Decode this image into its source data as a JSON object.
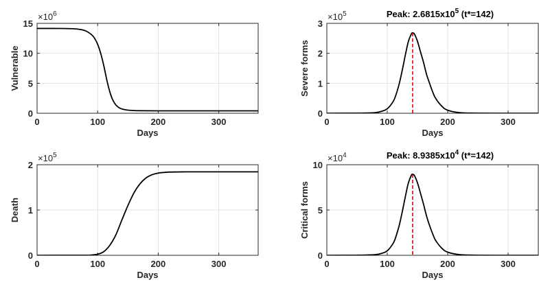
{
  "chart_data": [
    {
      "type": "line",
      "title": "",
      "xlabel": "Days",
      "ylabel": "Vulnerable",
      "exponent_base": "×10",
      "exponent_power": "6",
      "xlim": [
        0,
        365
      ],
      "ylim": [
        0,
        15
      ],
      "xticks": [
        0,
        100,
        200,
        300
      ],
      "yticks": [
        0,
        5,
        10,
        15
      ],
      "xtick_labels": [
        "0",
        "100",
        "200",
        "300"
      ],
      "ytick_labels": [
        "0",
        "5",
        "10",
        "15"
      ],
      "grid": true,
      "series": [
        {
          "color": "#000000",
          "x": [
            0,
            20,
            40,
            60,
            70,
            80,
            90,
            95,
            100,
            105,
            110,
            115,
            120,
            125,
            130,
            135,
            140,
            150,
            160,
            170,
            200,
            250,
            300,
            365
          ],
          "y": [
            14.15,
            14.15,
            14.14,
            14.1,
            14.0,
            13.75,
            13.1,
            12.5,
            11.5,
            10.0,
            8.0,
            5.6,
            3.6,
            2.2,
            1.4,
            0.95,
            0.72,
            0.52,
            0.45,
            0.42,
            0.4,
            0.4,
            0.4,
            0.4
          ]
        }
      ]
    },
    {
      "type": "line",
      "title_prefix": "Peak: 2.6815x10",
      "title_sup": "5",
      "title_suffix": "  (t*=142)",
      "xlabel": "Days",
      "ylabel": "Severe forms",
      "exponent_base": "×10",
      "exponent_power": "5",
      "xlim": [
        0,
        350
      ],
      "ylim": [
        0,
        3
      ],
      "xticks": [
        0,
        100,
        200,
        300
      ],
      "yticks": [
        0,
        1,
        2,
        3
      ],
      "xtick_labels": [
        "0",
        "100",
        "200",
        "300"
      ],
      "ytick_labels": [
        "0",
        "1",
        "2",
        "3"
      ],
      "grid": true,
      "peak": {
        "x": 142,
        "y": 2.6815,
        "color": "#dd0000"
      },
      "series": [
        {
          "color": "#000000",
          "x": [
            0,
            60,
            80,
            90,
            100,
            110,
            115,
            120,
            125,
            130,
            135,
            140,
            142,
            145,
            150,
            155,
            160,
            165,
            170,
            175,
            180,
            190,
            200,
            220,
            250,
            300,
            350
          ],
          "y": [
            0,
            0.005,
            0.02,
            0.06,
            0.15,
            0.4,
            0.65,
            1.0,
            1.45,
            1.95,
            2.4,
            2.65,
            2.6815,
            2.64,
            2.4,
            2.05,
            1.7,
            1.3,
            1.0,
            0.72,
            0.5,
            0.24,
            0.1,
            0.02,
            0.003,
            0,
            0
          ]
        }
      ]
    },
    {
      "type": "line",
      "title": "",
      "xlabel": "Days",
      "ylabel": "Death",
      "exponent_base": "×10",
      "exponent_power": "5",
      "xlim": [
        0,
        365
      ],
      "ylim": [
        0,
        2
      ],
      "xticks": [
        0,
        100,
        200,
        300
      ],
      "yticks": [
        0,
        1,
        2
      ],
      "xtick_labels": [
        "0",
        "100",
        "200",
        "300"
      ],
      "ytick_labels": [
        "0",
        "1",
        "2"
      ],
      "grid": true,
      "series": [
        {
          "color": "#000000",
          "x": [
            0,
            80,
            90,
            100,
            110,
            120,
            130,
            140,
            150,
            160,
            170,
            180,
            190,
            200,
            210,
            220,
            240,
            260,
            300,
            365
          ],
          "y": [
            0,
            0.002,
            0.008,
            0.025,
            0.08,
            0.22,
            0.45,
            0.78,
            1.1,
            1.38,
            1.58,
            1.71,
            1.78,
            1.815,
            1.83,
            1.838,
            1.842,
            1.843,
            1.843,
            1.843
          ]
        }
      ]
    },
    {
      "type": "line",
      "title_prefix": "Peak: 8.9385x10",
      "title_sup": "4",
      "title_suffix": "  (t*=142)",
      "xlabel": "Days",
      "ylabel": "Critical forms",
      "exponent_base": "×10",
      "exponent_power": "4",
      "xlim": [
        0,
        350
      ],
      "ylim": [
        0,
        10
      ],
      "xticks": [
        0,
        100,
        200,
        300
      ],
      "yticks": [
        0,
        5,
        10
      ],
      "xtick_labels": [
        "0",
        "100",
        "200",
        "300"
      ],
      "ytick_labels": [
        "0",
        "5",
        "10"
      ],
      "grid": true,
      "peak": {
        "x": 142,
        "y": 8.9385,
        "color": "#dd0000"
      },
      "series": [
        {
          "color": "#000000",
          "x": [
            0,
            60,
            80,
            90,
            100,
            110,
            115,
            120,
            125,
            130,
            135,
            140,
            142,
            145,
            150,
            155,
            160,
            165,
            170,
            175,
            180,
            190,
            200,
            220,
            250,
            300,
            350
          ],
          "y": [
            0,
            0.02,
            0.07,
            0.2,
            0.5,
            1.35,
            2.2,
            3.35,
            4.85,
            6.5,
            8.0,
            8.85,
            8.9385,
            8.8,
            8.0,
            6.85,
            5.65,
            4.35,
            3.3,
            2.4,
            1.65,
            0.8,
            0.35,
            0.07,
            0.01,
            0,
            0
          ]
        }
      ]
    }
  ]
}
